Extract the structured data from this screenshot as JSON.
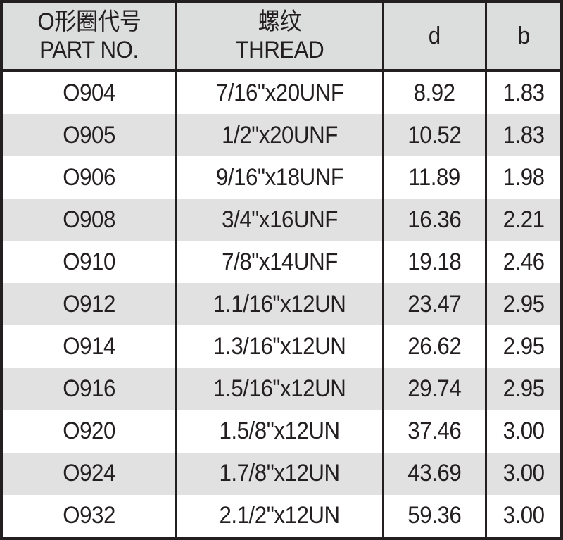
{
  "headers": [
    {
      "zh": "O形圈代号",
      "en": "PART NO."
    },
    {
      "zh": "螺纹",
      "en": "THREAD"
    },
    {
      "zh": "",
      "en": "d"
    },
    {
      "zh": "",
      "en": "b"
    }
  ],
  "rows": [
    [
      "O904",
      "7/16\"x20UNF",
      "8.92",
      "1.83"
    ],
    [
      "O905",
      "1/2\"x20UNF",
      "10.52",
      "1.83"
    ],
    [
      "O906",
      "9/16\"x18UNF",
      "11.89",
      "1.98"
    ],
    [
      "O908",
      "3/4\"x16UNF",
      "16.36",
      "2.21"
    ],
    [
      "O910",
      "7/8\"x14UNF",
      "19.18",
      "2.46"
    ],
    [
      "O912",
      "1.1/16\"x12UN",
      "23.47",
      "2.95"
    ],
    [
      "O914",
      "1.3/16\"x12UN",
      "26.62",
      "2.95"
    ],
    [
      "O916",
      "1.5/16\"x12UN",
      "29.74",
      "2.95"
    ],
    [
      "O920",
      "1.5/8\"x12UN",
      "37.46",
      "3.00"
    ],
    [
      "O924",
      "1.7/8\"x12UN",
      "43.69",
      "3.00"
    ],
    [
      "O932",
      "2.1/2\"x12UN",
      "59.36",
      "3.00"
    ]
  ],
  "colors": {
    "border": "#231f20",
    "header_bg": "#dcdddd",
    "alt_row_bg": "#e1e1e1"
  }
}
